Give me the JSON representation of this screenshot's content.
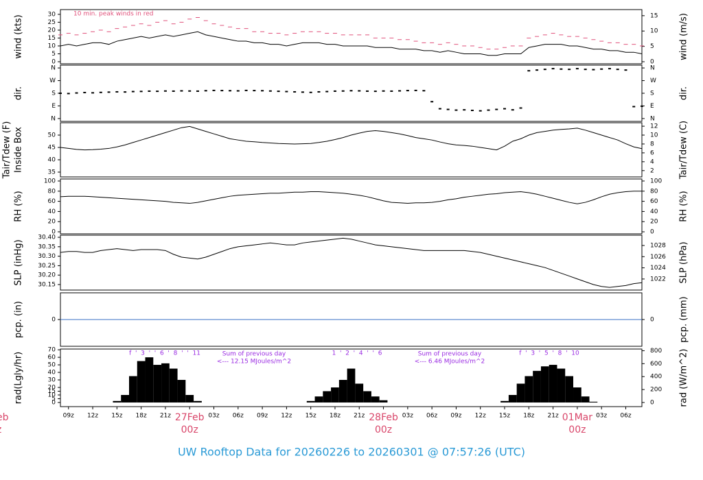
{
  "title": "UW Rooftop Data for 20260226  to  20260301 @ 07:57:26  (UTC)",
  "chart_data": [
    {
      "type": "line",
      "ylabel": [
        "wind (kts)"
      ],
      "y2label": "wind (m/s)",
      "ylim": [
        -1.3,
        33
      ],
      "yticks": [
        0,
        5,
        10,
        15,
        20,
        25,
        30
      ],
      "y2lim": [
        -0.67,
        16.98
      ],
      "y2ticks": [
        0,
        5,
        10,
        15
      ],
      "annotation": "10 min. peak winds in red",
      "annotation_color": "#e0507a",
      "series": [
        {
          "color": "#000000",
          "style": "line",
          "values": [
            10,
            11,
            10,
            11,
            12,
            12,
            11,
            13,
            14,
            15,
            16,
            15,
            16,
            17,
            16,
            17,
            18,
            19,
            17,
            16,
            15,
            14,
            13,
            13,
            12,
            12,
            11,
            11,
            10,
            11,
            12,
            12,
            12,
            11,
            11,
            10,
            10,
            10,
            10,
            9,
            9,
            9,
            8,
            8,
            8,
            7,
            7,
            6,
            7,
            6,
            5,
            5,
            5,
            4,
            4,
            5,
            5,
            5,
            9,
            10,
            11,
            11,
            11,
            10,
            10,
            9,
            8,
            8,
            7,
            7,
            6,
            6,
            5
          ]
        },
        {
          "color": "#e0507a",
          "style": "dash",
          "values": [
            17,
            18,
            17,
            18,
            19,
            20,
            19,
            21,
            22,
            23,
            24,
            23,
            25,
            26,
            24,
            25,
            27,
            28,
            26,
            24,
            23,
            22,
            21,
            21,
            19,
            19,
            18,
            18,
            17,
            18,
            19,
            19,
            19,
            18,
            18,
            17,
            17,
            17,
            17,
            15,
            15,
            15,
            14,
            14,
            13,
            12,
            12,
            11,
            12,
            11,
            10,
            10,
            9,
            8,
            8,
            9,
            10,
            10,
            15,
            16,
            17,
            18,
            17,
            16,
            16,
            15,
            14,
            13,
            12,
            12,
            11,
            11,
            10
          ]
        }
      ]
    },
    {
      "type": "scatter",
      "ylabel": [
        "dir."
      ],
      "y2label": "dir.",
      "ylim": [
        -20,
        380
      ],
      "yticks": [
        {
          "value": 0,
          "label": "N"
        },
        {
          "value": 90,
          "label": "E"
        },
        {
          "value": 180,
          "label": "S"
        },
        {
          "value": 270,
          "label": "W"
        },
        {
          "value": 360,
          "label": "N"
        }
      ],
      "y2lim": [
        -20,
        380
      ],
      "y2ticks": [
        {
          "value": 0,
          "label": "N"
        },
        {
          "value": 90,
          "label": "E"
        },
        {
          "value": 180,
          "label": "S"
        },
        {
          "value": 270,
          "label": "W"
        },
        {
          "value": 360,
          "label": "N"
        }
      ],
      "color": "#000000",
      "values": [
        180,
        178,
        182,
        185,
        183,
        186,
        188,
        190,
        189,
        192,
        193,
        195,
        194,
        196,
        195,
        197,
        196,
        195,
        198,
        200,
        199,
        198,
        197,
        200,
        199,
        198,
        196,
        194,
        192,
        190,
        188,
        186,
        190,
        192,
        195,
        196,
        198,
        197,
        195,
        194,
        196,
        195,
        197,
        199,
        200,
        198,
        120,
        70,
        65,
        60,
        62,
        58,
        55,
        60,
        65,
        70,
        62,
        75,
        340,
        345,
        350,
        355,
        352,
        350,
        355,
        350,
        348,
        352,
        355,
        350,
        345,
        85,
        88
      ]
    },
    {
      "type": "line",
      "ylabel": [
        "Tair/Tdew (F)",
        "Inside Box"
      ],
      "y2label": "Tair/Tdew (C)",
      "ylim": [
        33.05,
        55
      ],
      "yticks": [
        35,
        40,
        45,
        50
      ],
      "y2lim": [
        0.58,
        12.78
      ],
      "y2ticks": [
        2,
        4,
        6,
        8,
        10,
        12
      ],
      "series": [
        {
          "color": "#000000",
          "style": "line",
          "values": [
            45,
            44.6,
            44.2,
            44,
            44.1,
            44.3,
            44.6,
            45.2,
            46,
            47,
            48,
            49,
            50,
            51,
            52,
            53,
            53.5,
            52.5,
            51.5,
            50.5,
            49.5,
            48.5,
            48,
            47.5,
            47.3,
            47,
            46.8,
            46.6,
            46.5,
            46.4,
            46.5,
            46.6,
            47,
            47.5,
            48.2,
            49,
            50,
            50.8,
            51.5,
            51.8,
            51.5,
            51,
            50.5,
            49.8,
            49,
            48.5,
            48,
            47.2,
            46.5,
            46,
            45.8,
            45.5,
            45,
            44.5,
            44,
            45.5,
            47.5,
            48.5,
            50,
            51,
            51.5,
            52,
            52.3,
            52.5,
            52.8,
            52,
            51,
            50,
            49,
            48,
            46.5,
            45.2,
            44.5
          ]
        }
      ]
    },
    {
      "type": "line",
      "ylabel": [
        "RH (%)"
      ],
      "y2label": "RH (%)",
      "ylim": [
        -4,
        104
      ],
      "yticks": [
        0,
        20,
        40,
        60,
        80,
        100
      ],
      "y2lim": [
        -4,
        104
      ],
      "y2ticks": [
        0,
        20,
        40,
        60,
        80,
        100
      ],
      "series": [
        {
          "color": "#000000",
          "style": "line",
          "values": [
            69,
            70,
            70,
            70,
            69,
            68,
            67,
            66,
            65,
            64,
            63,
            62,
            61,
            60,
            58,
            57,
            56,
            58,
            61,
            64,
            67,
            70,
            72,
            73,
            74,
            75,
            76,
            76,
            77,
            78,
            78,
            79,
            79,
            78,
            77,
            76,
            74,
            72,
            69,
            65,
            61,
            58,
            57,
            56,
            57,
            57,
            58,
            60,
            63,
            65,
            68,
            70,
            72,
            74,
            75,
            77,
            78,
            79,
            77,
            74,
            70,
            66,
            62,
            58,
            55,
            58,
            63,
            69,
            74,
            77,
            79,
            80,
            80
          ]
        }
      ]
    },
    {
      "type": "line",
      "ylabel": [
        "SLP (inHg)"
      ],
      "y2label": "SLP (hPa)",
      "ylim": [
        30.121,
        30.411
      ],
      "yticks": [
        30.15,
        {
          "value": 30.2,
          "label": "30.20"
        },
        30.25,
        {
          "value": 30.3,
          "label": "30.30"
        },
        30.35,
        {
          "value": 30.4,
          "label": "30.40"
        }
      ],
      "y2lim": [
        1020.02,
        1029.84
      ],
      "y2ticks": [
        1022,
        1024,
        1026,
        1028
      ],
      "series": [
        {
          "color": "#000000",
          "style": "line",
          "values": [
            30.32,
            30.325,
            30.325,
            30.32,
            30.32,
            30.33,
            30.335,
            30.34,
            30.335,
            30.33,
            30.335,
            30.335,
            30.335,
            30.33,
            30.31,
            30.295,
            30.29,
            30.285,
            30.295,
            30.31,
            30.325,
            30.34,
            30.35,
            30.355,
            30.36,
            30.365,
            30.37,
            30.365,
            30.36,
            30.36,
            30.37,
            30.375,
            30.38,
            30.385,
            30.39,
            30.395,
            30.39,
            30.38,
            30.37,
            30.36,
            30.355,
            30.35,
            30.345,
            30.34,
            30.335,
            30.33,
            30.33,
            30.33,
            30.33,
            30.33,
            30.33,
            30.325,
            30.32,
            30.31,
            30.3,
            30.29,
            30.28,
            30.27,
            30.26,
            30.25,
            30.24,
            30.225,
            30.21,
            30.195,
            30.18,
            30.165,
            30.15,
            30.14,
            30.135,
            30.14,
            30.145,
            30.155,
            30.16
          ]
        }
      ]
    },
    {
      "type": "line",
      "ylabel": [
        "pcp. (in)"
      ],
      "y2label": "pcp. (mm)",
      "ylim": [
        -1,
        1
      ],
      "yticks": [
        0
      ],
      "y2lim": [
        -25.4,
        25.4
      ],
      "y2ticks": [
        0
      ],
      "series": [
        {
          "color": "#3a6fc4",
          "style": "line",
          "values": [
            0,
            0,
            0,
            0,
            0,
            0,
            0,
            0,
            0,
            0,
            0,
            0,
            0,
            0,
            0,
            0,
            0,
            0,
            0,
            0,
            0,
            0,
            0,
            0,
            0,
            0,
            0,
            0,
            0,
            0,
            0,
            0,
            0,
            0,
            0,
            0,
            0,
            0,
            0,
            0,
            0,
            0,
            0,
            0,
            0,
            0,
            0,
            0,
            0,
            0,
            0,
            0,
            0,
            0,
            0,
            0,
            0,
            0,
            0,
            0,
            0,
            0,
            0,
            0,
            0,
            0,
            0,
            0,
            0,
            0,
            0,
            0,
            0
          ]
        }
      ]
    },
    {
      "type": "bar",
      "ylabel": [
        "rad(Lgly/hr)"
      ],
      "y2label": "rad (W/m^2)",
      "ylim": [
        -5.5,
        71
      ],
      "yticks": [
        0,
        5,
        10,
        15,
        20,
        30,
        40,
        50,
        60,
        70
      ],
      "y2lim": [
        -64,
        826
      ],
      "y2ticks": [
        0,
        200,
        400,
        600,
        800
      ],
      "color": "#000000",
      "values": [
        0,
        0,
        0,
        0,
        0,
        0,
        0,
        2,
        10,
        35,
        55,
        60,
        50,
        52,
        45,
        30,
        10,
        2,
        0,
        0,
        0,
        0,
        0,
        0,
        0,
        0,
        0,
        0,
        0,
        0,
        0,
        2,
        8,
        15,
        20,
        30,
        45,
        25,
        15,
        8,
        3,
        0,
        0,
        0,
        0,
        0,
        0,
        0,
        0,
        0,
        0,
        0,
        0,
        0,
        0,
        2,
        10,
        25,
        35,
        42,
        48,
        50,
        45,
        35,
        20,
        8,
        1,
        0,
        0,
        0,
        0,
        0,
        0
      ],
      "categories": [
        null,
        "09z",
        null,
        null,
        "12z",
        null,
        null,
        "15z",
        null,
        null,
        "18z",
        null,
        null,
        "21z",
        null,
        null,
        "00z",
        null,
        null,
        "03z",
        null,
        null,
        "06z",
        null,
        null,
        "09z",
        null,
        null,
        "12z",
        null,
        null,
        "15z",
        null,
        null,
        "18z",
        null,
        null,
        "21z",
        null,
        null,
        "00z",
        null,
        null,
        "03z",
        null,
        null,
        "06z",
        null,
        null,
        "09z",
        null,
        null,
        "12z",
        null,
        null,
        "15z",
        null,
        null,
        "18z",
        null,
        null,
        "21z",
        null,
        null,
        "00z",
        null,
        null,
        "03z",
        null,
        null,
        "06z",
        null,
        null
      ],
      "category_dates": [
        null,
        null,
        null,
        null,
        null,
        null,
        null,
        null,
        null,
        null,
        null,
        null,
        null,
        null,
        null,
        null,
        "27Feb",
        null,
        null,
        null,
        null,
        null,
        null,
        null,
        null,
        null,
        null,
        null,
        null,
        null,
        null,
        null,
        null,
        null,
        null,
        null,
        null,
        null,
        null,
        null,
        "28Feb",
        null,
        null,
        null,
        null,
        null,
        null,
        null,
        null,
        null,
        null,
        null,
        null,
        null,
        null,
        null,
        null,
        null,
        null,
        null,
        null,
        null,
        null,
        null,
        "01Mar",
        null,
        null,
        null,
        null,
        null,
        null,
        null,
        null
      ],
      "date_color": "#d9466a",
      "clipped_labels": [
        "eb",
        "z"
      ],
      "hour_marks": [
        "f  '  3  '  '  6  '  8  '  '  11",
        "1  '  2  '  4  '  '  6",
        "f  '  3  '  5  '  8  '  10"
      ],
      "annotations": [
        "Sum of previous day",
        "<--- 12.15 MJoules/m^2",
        "Sum of previous day",
        "<--- 6.46 MJoules/m^2"
      ],
      "annotation_color": "#9a2be2"
    }
  ]
}
